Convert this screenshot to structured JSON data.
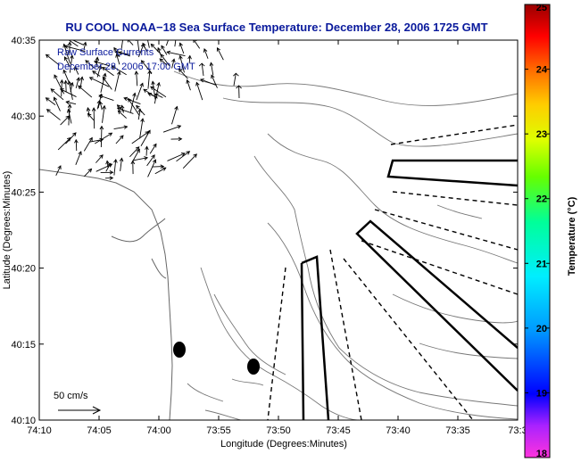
{
  "chart_data": {
    "type": "map",
    "title": "RU COOL  NOAA−18  Sea Surface Temperature:  December 28, 2006 1725 GMT",
    "overlay": {
      "line1": "Raw Surface Currents",
      "line2": "December 28, 2006 17:00 GMT"
    },
    "xlabel": "Longitude (Degrees:Minutes)",
    "ylabel": "Latitude (Degrees:Minutes)",
    "x_ticks": [
      "74:10",
      "74:05",
      "74:00",
      "73:55",
      "73:50",
      "73:45",
      "73:40",
      "73:35",
      "73:3"
    ],
    "y_ticks": [
      "40:10",
      "40:15",
      "40:20",
      "40:25",
      "40:30",
      "40:35"
    ],
    "scale_label": "50 cm/s",
    "colorbar": {
      "label": "Temperature (°C)",
      "ticks": [
        "18",
        "19",
        "20",
        "21",
        "22",
        "23",
        "24",
        "25"
      ],
      "min": 18,
      "max": 25,
      "colors": [
        "#ff33dd",
        "#7a00ff",
        "#0000ff",
        "#0088ff",
        "#00e5ff",
        "#00ff88",
        "#44ff00",
        "#ddff00",
        "#ffcc00",
        "#ff6600",
        "#ff0000",
        "#990000"
      ]
    },
    "grid": false
  }
}
